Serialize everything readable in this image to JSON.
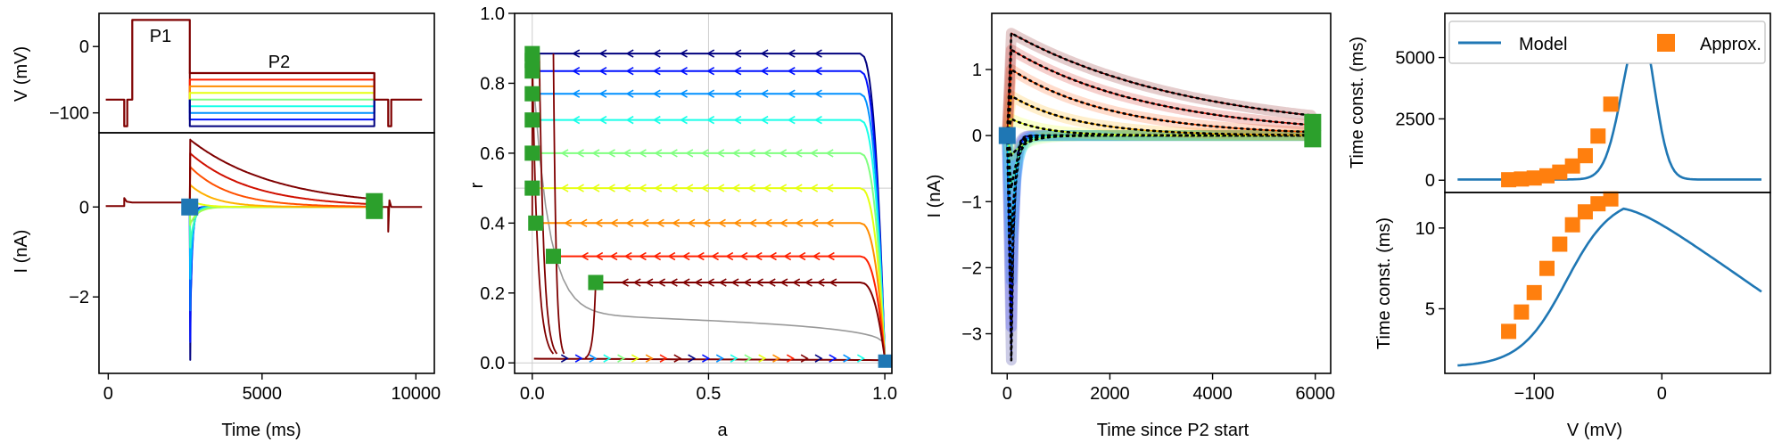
{
  "chart_data": [
    {
      "id": "protocol",
      "type": "line",
      "ylabel": "V (mV)",
      "yticks": [
        0,
        -100
      ],
      "ylim": [
        -130,
        50
      ],
      "xlim": [
        -300,
        10600
      ],
      "annotations": [
        "P1",
        "P2"
      ],
      "p2_levels": [
        -40,
        -50,
        -60,
        -70,
        -80,
        -90,
        -100,
        -110,
        -120
      ],
      "holding": -80
    },
    {
      "id": "current",
      "type": "line",
      "xlabel": "Time (ms)",
      "ylabel": "I (nA)",
      "xticks": [
        0,
        5000,
        10000
      ],
      "yticks": [
        0,
        -2
      ],
      "ylim": [
        -3.7,
        1.65
      ],
      "xlim": [
        -300,
        10600
      ],
      "peaks": [
        -3.4,
        -3.0,
        -2.3,
        -1.6,
        -0.9,
        -0.4,
        0.15,
        0.5,
        0.9,
        1.2,
        1.5
      ]
    },
    {
      "id": "phase",
      "type": "line",
      "xlabel": "a",
      "ylabel": "r",
      "xticks": [
        0.0,
        0.5,
        1.0
      ],
      "yticks": [
        0.0,
        0.2,
        0.4,
        0.6,
        0.8,
        1.0
      ],
      "xlim": [
        -0.05,
        1.02
      ],
      "ylim": [
        -0.03,
        1.0
      ],
      "levels": [
        0.885,
        0.835,
        0.77,
        0.695,
        0.6,
        0.5,
        0.4,
        0.305,
        0.23
      ],
      "start_a": [
        0.0,
        0.0,
        0.0,
        0.0,
        0.0,
        0.0,
        0.01,
        0.06,
        0.18
      ]
    },
    {
      "id": "tail",
      "type": "line",
      "xlabel": "Time since P2 start",
      "ylabel": "I (nA)",
      "xticks": [
        0,
        2000,
        4000,
        6000
      ],
      "yticks": [
        1,
        0,
        -1,
        -2,
        -3
      ],
      "xlim": [
        -300,
        6300
      ],
      "ylim": [
        -3.6,
        1.85
      ]
    },
    {
      "id": "tau_slow",
      "type": "line",
      "ylabel": "Time const. (ms)",
      "yticks": [
        0,
        2500,
        5000
      ],
      "xlim": [
        -170,
        85
      ],
      "ylim": [
        -500,
        6800
      ],
      "legend": [
        "Model",
        "Approx."
      ],
      "legend_position": "top",
      "approx_x": [
        -120,
        -110,
        -100,
        -90,
        -80,
        -70,
        -60,
        -50,
        -40
      ],
      "approx_y": [
        20,
        50,
        90,
        180,
        330,
        580,
        1000,
        1800,
        3100
      ]
    },
    {
      "id": "tau_fast",
      "type": "line",
      "xlabel": "V (mV)",
      "ylabel": "Time const. (ms)",
      "xticks": [
        -100,
        0
      ],
      "yticks": [
        5,
        10
      ],
      "xlim": [
        -170,
        85
      ],
      "ylim": [
        1.0,
        12.2
      ],
      "approx_x": [
        -120,
        -110,
        -100,
        -90,
        -80,
        -70,
        -60,
        -50,
        -40
      ],
      "approx_y": [
        3.6,
        4.8,
        6.0,
        7.5,
        9.0,
        10.2,
        11.0,
        11.5,
        11.8
      ]
    }
  ],
  "colors": {
    "model": "#1f77b4",
    "approx": "#ff7f0e",
    "marker_start": "#1f77b4",
    "marker_end": "#2ca02c",
    "p1": "#7f0000",
    "p2_sweep": [
      "#7f0000",
      "#ff2000",
      "#ff8c00",
      "#e6ff10",
      "#80ff80",
      "#18ffe8",
      "#0090ff",
      "#0010ff",
      "#00007f"
    ]
  }
}
